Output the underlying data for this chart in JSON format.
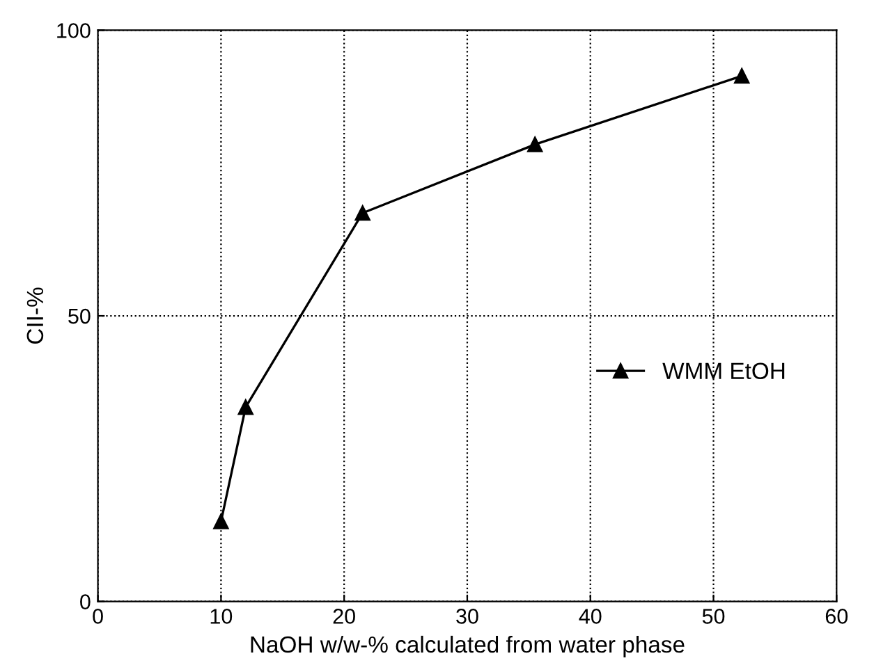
{
  "chart_data": {
    "type": "line",
    "xlabel": "NaOH w/w-% calculated from water phase",
    "ylabel": "CII-%",
    "x": [
      10,
      12,
      21.5,
      35.5,
      52.3
    ],
    "series": [
      {
        "name": "WMM EtOH",
        "color": "#000000",
        "values": [
          14,
          34,
          68,
          80,
          92
        ]
      }
    ],
    "xlim": [
      0,
      60
    ],
    "xticks": [
      0,
      10,
      20,
      30,
      40,
      50,
      60
    ],
    "ylim": [
      0,
      100
    ],
    "yticks": [
      0,
      50,
      100
    ],
    "grid": true,
    "legend": "right",
    "marker": "triangle",
    "line_style": "solid"
  }
}
